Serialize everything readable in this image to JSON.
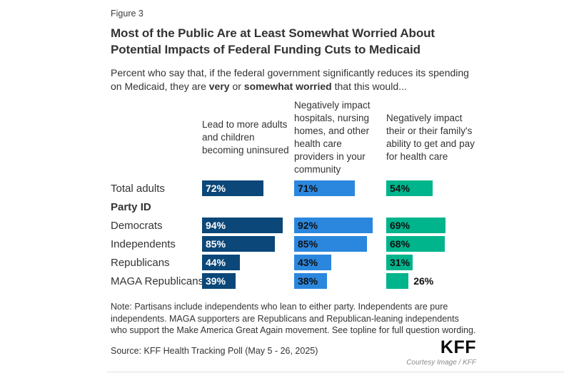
{
  "figure_label": "Figure 3",
  "title": "Most of the Public Are at Least Somewhat Worried About Potential Impacts of Federal Funding Cuts to Medicaid",
  "subtitle": {
    "segments": [
      {
        "text": "Percent who say that, if the federal government significantly reduces its spending on Medicaid, they are ",
        "bold": false
      },
      {
        "text": "very",
        "bold": true
      },
      {
        "text": " or ",
        "bold": false
      },
      {
        "text": "somewhat worried",
        "bold": true
      },
      {
        "text": " that this would...",
        "bold": false
      }
    ]
  },
  "chart_data": {
    "type": "bar",
    "orientation": "horizontal",
    "unit": "%",
    "xlim": [
      0,
      100
    ],
    "grid": false,
    "legend": "none",
    "columns": [
      {
        "header": "Lead to more adults and children becoming uninsured",
        "color": "#0b4778",
        "label_color": "#ffffff"
      },
      {
        "header": "Negatively impact hospitals, nursing homes, and other health care providers in your community",
        "color": "#2b87de",
        "label_color": "#111111"
      },
      {
        "header": "Negatively impact their or their family's ability to get and pay for health care",
        "color": "#00b48c",
        "label_color": "#111111"
      }
    ],
    "categories": [
      "Total adults",
      "Democrats",
      "Independents",
      "Republicans",
      "MAGA Republicans"
    ],
    "series": [
      {
        "name": "Lead to more adults and children becoming uninsured",
        "values": [
          72,
          94,
          85,
          44,
          39
        ]
      },
      {
        "name": "Negatively impact hospitals, nursing homes, and other health care providers in your community",
        "values": [
          71,
          92,
          85,
          43,
          38
        ]
      },
      {
        "name": "Negatively impact their or their family's ability to get and pay for health care",
        "values": [
          54,
          69,
          68,
          31,
          26
        ]
      }
    ],
    "rows": [
      {
        "label": "Total adults",
        "values": [
          72,
          71,
          54
        ]
      },
      {
        "section": "Party ID"
      },
      {
        "label": "Democrats",
        "values": [
          94,
          92,
          69
        ]
      },
      {
        "label": "Independents",
        "values": [
          85,
          85,
          68
        ]
      },
      {
        "label": "Republicans",
        "values": [
          44,
          43,
          31
        ]
      },
      {
        "label": "MAGA Republicans",
        "values": [
          39,
          38,
          26
        ]
      }
    ]
  },
  "note": "Note: Partisans include independents who lean to either party. Independents are pure independents. MAGA supporters are Republicans and Republican-leaning independents who support the Make America Great Again movement. See topline for full question wording.",
  "source": "Source: KFF Health Tracking Poll (May 5 - 26, 2025)",
  "logo": "KFF",
  "credit": "Courtesy Image / KFF"
}
